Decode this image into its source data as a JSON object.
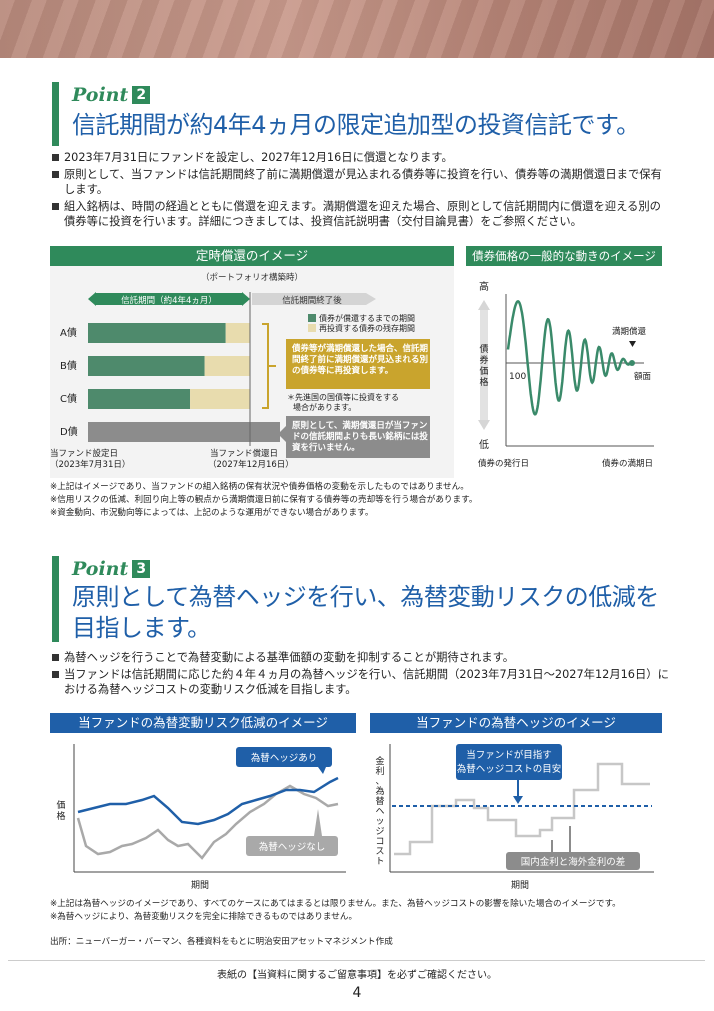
{
  "point2": {
    "label": "Point",
    "num": "2",
    "title": "信託期間が約4年4ヵ月の限定追加型の投資信託です。",
    "bullets": [
      "2023年7月31日にファンドを設定し、2027年12月16日に償還となります。",
      "原則として、当ファンドは信託期間終了前に満期償還が見込まれる債券等に投資を行い、債券等の満期償還日まで保有します。",
      "組入銘柄は、時間の経過とともに償還を迎えます。満期償還を迎えた場合、原則として信託期間内に償還を迎える別の債券等に投資を行います。詳細につきましては、投資信託説明書（交付目論見書）をご参照ください。"
    ],
    "left_chart": {
      "header": "定時償還のイメージ",
      "sub": "（ポートフォリオ構築時）",
      "period_arrow": "信託期間（約4年4ヵ月）",
      "after_arrow": "信託期間終了後",
      "legend": [
        "債券が償還するまでの期間",
        "再投資する債券の残存期間"
      ],
      "bonds": [
        {
          "label": "A債",
          "held": 0.85,
          "reinvest": 0.15
        },
        {
          "label": "B債",
          "held": 0.72,
          "reinvest": 0.28
        },
        {
          "label": "C債",
          "held": 0.63,
          "reinvest": 0.37
        },
        {
          "label": "D債",
          "held": 1.0,
          "reinvest": 0
        }
      ],
      "callout_gold": "債券等が満期償還した場合、信託期間終了前に満期償還が見込まれる別の債券等に再投資します。",
      "callout_note": "＊先進国の国債等に投資をする場合があります。",
      "callout_gray": "原則として、満期償還日が当ファンドの信託期間よりも長い銘柄には投資を行いません。",
      "start_label": "当ファンド設定日",
      "start_date": "（2023年7月31日）",
      "end_label": "当ファンド償還日",
      "end_date": "（2027年12月16日）"
    },
    "right_chart": {
      "header": "債券価格の一般的な動きのイメージ",
      "high": "高",
      "low": "低",
      "ylabel": "債券価格",
      "par": "100",
      "redemption": "満期償還",
      "face": "額面",
      "x_start": "債券の発行日",
      "x_end": "債券の満期日"
    },
    "notes": [
      "※上記はイメージであり、当ファンドの組入銘柄の保有状況や債券価格の変動を示したものではありません。",
      "※信用リスクの低減、利回り向上等の観点から満期償還日前に保有する債券等の売却等を行う場合があります。",
      "※資金動向、市況動向等によっては、上記のような運用ができない場合があります。"
    ]
  },
  "point3": {
    "label": "Point",
    "num": "3",
    "title_line1": "原則として為替ヘッジを行い、為替変動リスクの低減を",
    "title_line2": "目指します。",
    "bullets": [
      "為替ヘッジを行うことで為替変動による基準価額の変動を抑制することが期待されます。",
      "当ファンドは信託期間に応じた約４年４ヵ月の為替ヘッジを行い、信託期間（2023年7月31日～2027年12月16日）における為替ヘッジコストの変動リスク低減を目指します。"
    ],
    "left_chart": {
      "header": "当ファンドの為替変動リスク低減のイメージ",
      "ylabel": "価格",
      "xlabel": "期間",
      "hedged": "為替ヘッジあり",
      "unhedged": "為替ヘッジなし"
    },
    "right_chart": {
      "header": "当ファンドの為替ヘッジのイメージ",
      "ylabel": "金利、為替ヘッジコスト",
      "xlabel": "期間",
      "target": "当ファンドが目指す\n為替ヘッジコストの目安",
      "diff": "国内金利と海外金利の差"
    },
    "notes": [
      "※上記は為替ヘッジのイメージであり、すべてのケースにあてはまるとは限りません。また、為替ヘッジコストの影響を除いた場合のイメージです。",
      "※為替ヘッジにより、為替変動リスクを完全に排除できるものではありません。"
    ],
    "source": "出所：ニューバーガー・バーマン、各種資料をもとに明治安田アセットマネジメント作成"
  },
  "footer": {
    "notice": "表紙の【当資料に関するご留意事項】を必ずご確認ください。",
    "page": "4"
  },
  "colors": {
    "green": "#2f8a5b",
    "blue": "#1f5fa8",
    "gold": "#c9a42d",
    "gray": "#8c8c8c",
    "beige": "#e8dcae"
  }
}
